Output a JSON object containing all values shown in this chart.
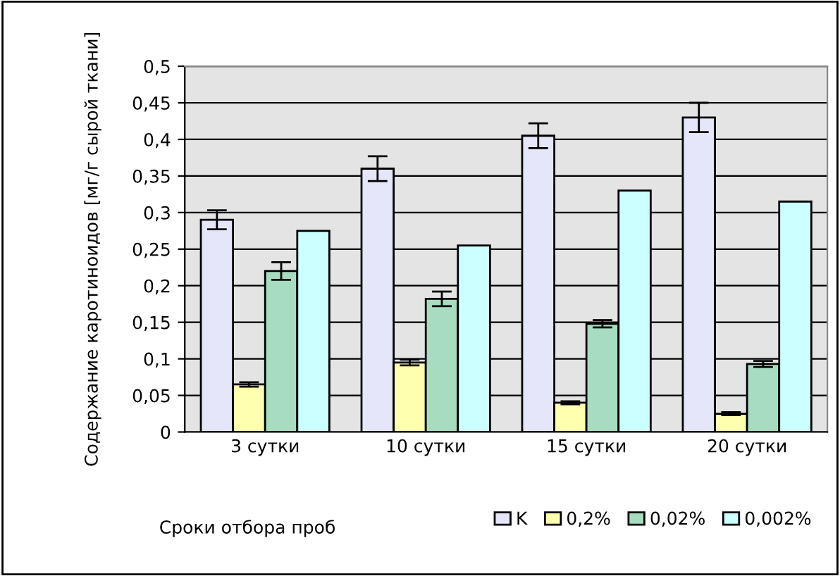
{
  "chart_data": {
    "type": "bar",
    "ylabel": "Содержание каротиноидов [мг/г сырой ткани]",
    "xlabel": "Сроки отбора проб",
    "categories": [
      "3 сутки",
      "10 сутки",
      "15 сутки",
      "20 сутки"
    ],
    "series": [
      {
        "name": "K",
        "color": "#e6e6fa",
        "values": [
          0.29,
          0.36,
          0.405,
          0.43
        ],
        "errors": [
          0.013,
          0.017,
          0.017,
          0.02
        ]
      },
      {
        "name": "0,2%",
        "color": "#ffffb0",
        "values": [
          0.065,
          0.095,
          0.04,
          0.025
        ],
        "errors": [
          0.003,
          0.004,
          0.002,
          0.002
        ]
      },
      {
        "name": "0,02%",
        "color": "#a8dcc0",
        "values": [
          0.22,
          0.182,
          0.148,
          0.093
        ],
        "errors": [
          0.012,
          0.01,
          0.005,
          0.004
        ]
      },
      {
        "name": "0,002%",
        "color": "#ccffff",
        "values": [
          0.275,
          0.255,
          0.33,
          0.315
        ]
      }
    ],
    "ylim": [
      0,
      0.5
    ],
    "yticks": [
      {
        "value": 0,
        "label": "0"
      },
      {
        "value": 0.05,
        "label": "0,05"
      },
      {
        "value": 0.1,
        "label": "0,1"
      },
      {
        "value": 0.15,
        "label": "0,15"
      },
      {
        "value": 0.2,
        "label": "0,2"
      },
      {
        "value": 0.25,
        "label": "0,25"
      },
      {
        "value": 0.3,
        "label": "0,3"
      },
      {
        "value": 0.35,
        "label": "0,35"
      },
      {
        "value": 0.4,
        "label": "0,4"
      },
      {
        "value": 0.45,
        "label": "0,45"
      },
      {
        "value": 0.5,
        "label": "0,5"
      }
    ],
    "grid": "y",
    "legend": "bottom"
  }
}
